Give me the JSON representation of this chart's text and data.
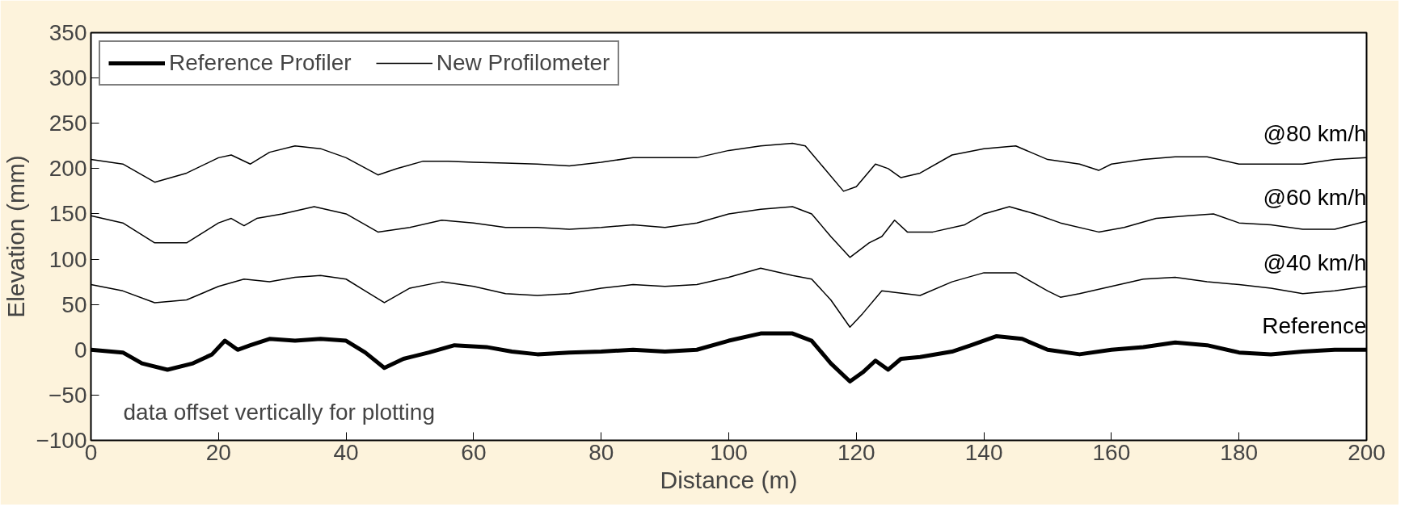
{
  "chart_data": {
    "type": "line",
    "xlabel": "Distance (m)",
    "ylabel": "Elevation (mm)",
    "xlim": [
      0,
      200
    ],
    "xticks": [
      0,
      20,
      40,
      60,
      80,
      100,
      120,
      140,
      160,
      180,
      200
    ],
    "ylim": [
      -100,
      350
    ],
    "yticks": [
      -100,
      -50,
      0,
      50,
      100,
      150,
      200,
      250,
      300,
      350
    ],
    "grid": false,
    "legend": "top left",
    "marker": "none",
    "line_style": "solid",
    "series": [
      {
        "name": "Reference Profiler",
        "color": "#000000",
        "x": [
          0,
          5,
          8,
          12,
          16,
          19,
          21,
          23,
          25,
          28,
          32,
          36,
          40,
          43,
          46,
          49,
          53,
          57,
          62,
          66,
          70,
          75,
          80,
          85,
          90,
          95,
          100,
          105,
          110,
          113,
          116,
          119,
          121,
          123,
          125,
          127,
          130,
          135,
          138,
          142,
          146,
          150,
          155,
          160,
          165,
          170,
          175,
          180,
          185,
          190,
          195,
          200
        ],
        "values": [
          0,
          -3,
          -15,
          -22,
          -15,
          -5,
          10,
          0,
          5,
          12,
          10,
          12,
          10,
          -3,
          -20,
          -10,
          -3,
          5,
          3,
          -2,
          -5,
          -3,
          -2,
          0,
          -2,
          0,
          10,
          18,
          18,
          10,
          -15,
          -35,
          -25,
          -12,
          -22,
          -10,
          -8,
          -2,
          5,
          15,
          12,
          0,
          -5,
          0,
          3,
          8,
          5,
          -3,
          -5,
          -2,
          0,
          0
        ]
      },
      {
        "name": "New Profilometer",
        "color": "#000000",
        "x": [
          0,
          5,
          10,
          15,
          20,
          22,
          25,
          28,
          32,
          36,
          40,
          45,
          48,
          52,
          56,
          60,
          65,
          70,
          75,
          80,
          85,
          90,
          95,
          100,
          105,
          110,
          112,
          115,
          118,
          120,
          123,
          125,
          127,
          130,
          135,
          140,
          145,
          150,
          155,
          158,
          160,
          165,
          170,
          175,
          180,
          185,
          190,
          195,
          200
        ],
        "values": [
          210,
          205,
          185,
          195,
          212,
          215,
          205,
          218,
          225,
          222,
          212,
          193,
          200,
          208,
          208,
          207,
          206,
          205,
          203,
          207,
          212,
          212,
          212,
          220,
          225,
          228,
          225,
          200,
          175,
          180,
          205,
          200,
          190,
          195,
          215,
          222,
          225,
          210,
          205,
          198,
          205,
          210,
          213,
          213,
          205,
          205,
          205,
          210,
          212
        ]
      },
      {
        "color": "#000000",
        "x": [
          0,
          5,
          10,
          15,
          20,
          22,
          24,
          26,
          30,
          35,
          40,
          45,
          50,
          55,
          60,
          65,
          70,
          75,
          80,
          85,
          90,
          95,
          100,
          105,
          110,
          113,
          116,
          119,
          122,
          124,
          126,
          128,
          132,
          137,
          140,
          144,
          148,
          152,
          158,
          162,
          167,
          172,
          176,
          180,
          185,
          190,
          195,
          200
        ],
        "values": [
          148,
          140,
          118,
          118,
          140,
          145,
          137,
          145,
          150,
          158,
          150,
          130,
          135,
          143,
          140,
          135,
          135,
          133,
          135,
          138,
          135,
          140,
          150,
          155,
          158,
          150,
          125,
          102,
          118,
          125,
          143,
          130,
          130,
          138,
          150,
          158,
          150,
          140,
          130,
          135,
          145,
          148,
          150,
          140,
          138,
          133,
          133,
          142
        ]
      },
      {
        "color": "#000000",
        "x": [
          0,
          5,
          10,
          15,
          20,
          24,
          28,
          32,
          36,
          40,
          43,
          46,
          50,
          55,
          60,
          65,
          70,
          75,
          80,
          85,
          90,
          95,
          100,
          105,
          110,
          113,
          116,
          119,
          121,
          124,
          130,
          135,
          140,
          145,
          150,
          152,
          155,
          160,
          165,
          170,
          175,
          180,
          185,
          190,
          195,
          200
        ],
        "values": [
          72,
          65,
          52,
          55,
          70,
          78,
          75,
          80,
          82,
          78,
          65,
          52,
          68,
          75,
          70,
          62,
          60,
          62,
          68,
          72,
          70,
          72,
          80,
          90,
          82,
          78,
          55,
          25,
          40,
          65,
          60,
          75,
          85,
          85,
          65,
          58,
          62,
          70,
          78,
          80,
          75,
          72,
          68,
          62,
          65,
          70
        ]
      }
    ],
    "annotations": [
      "Reference",
      "@80 km/h",
      "@60 km/h",
      "@40 km/h",
      "data offset vertically for plotting"
    ]
  }
}
